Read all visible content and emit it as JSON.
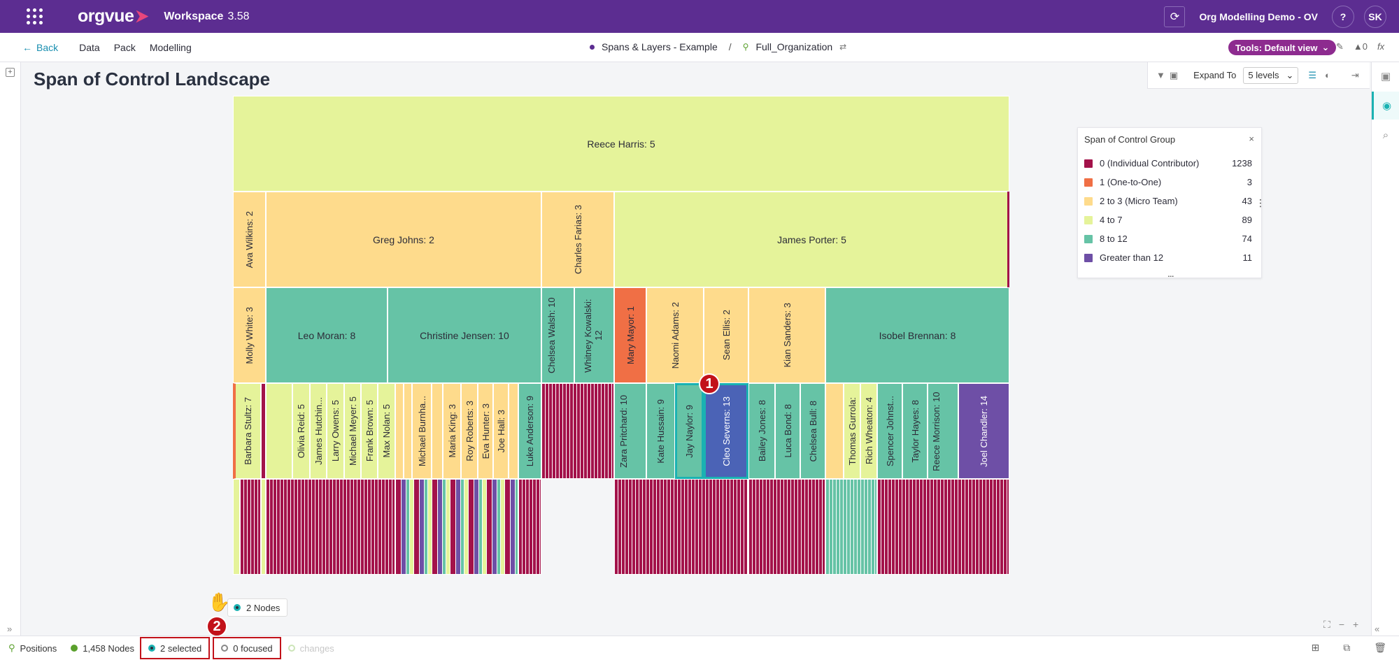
{
  "app": {
    "workspace_label": "Workspace",
    "version": "3.58",
    "logo_text": "orgvue"
  },
  "topbar": {
    "project": "Org Modelling Demo - OV",
    "help": "?",
    "user_initials": "SK"
  },
  "nav": {
    "back": "Back",
    "links": [
      "Data",
      "Pack",
      "Modelling"
    ],
    "dataset": "Spans & Layers - Example",
    "separator": "/",
    "hierarchy": "Full_Organization",
    "tools": "Tools: Default view",
    "alerts": "0"
  },
  "page": {
    "title": "Span of Control Landscape"
  },
  "expand": {
    "label": "Expand To",
    "value": "5 levels"
  },
  "chart_data": {
    "type": "treemap",
    "level1": [
      {
        "label": "Reece Harris: 5",
        "group": "4 to 7"
      }
    ],
    "level2": [
      {
        "label": "Ava Wilkins: 2",
        "group": "2 to 3 (Micro Team)"
      },
      {
        "label": "Greg Johns: 2",
        "group": "2 to 3 (Micro Team)"
      },
      {
        "label": "Charles Farias: 3",
        "group": "2 to 3 (Micro Team)"
      },
      {
        "label": "James Porter: 5",
        "group": "4 to 7"
      }
    ],
    "level3": [
      {
        "label": "Molly White: 3",
        "group": "2 to 3 (Micro Team)"
      },
      {
        "label": "Leo Moran: 8",
        "group": "8 to 12"
      },
      {
        "label": "Christine Jensen: 10",
        "group": "8 to 12"
      },
      {
        "label": "Chelsea Walsh: 10",
        "group": "8 to 12"
      },
      {
        "label": "Whitney Kowalski: 12",
        "group": "8 to 12"
      },
      {
        "label": "Mary Mayor: 1",
        "group": "1 (One-to-One)"
      },
      {
        "label": "Naomi Adams: 2",
        "group": "2 to 3 (Micro Team)"
      },
      {
        "label": "Sean Ellis: 2",
        "group": "2 to 3 (Micro Team)"
      },
      {
        "label": "Kian Sanders: 3",
        "group": "2 to 3 (Micro Team)"
      },
      {
        "label": "Isobel Brennan: 8",
        "group": "8 to 12"
      }
    ],
    "level4": [
      {
        "label": "Barbara Stultz: 7",
        "group": "4 to 7"
      },
      {
        "label": "Olivia Reid: 5",
        "group": "4 to 7"
      },
      {
        "label": "James Hutchin...",
        "group": "4 to 7"
      },
      {
        "label": "Larry Owens: 5",
        "group": "4 to 7"
      },
      {
        "label": "Michael Meyer: 5",
        "group": "4 to 7"
      },
      {
        "label": "Frank Brown: 5",
        "group": "4 to 7"
      },
      {
        "label": "Max Nolan: 5",
        "group": "4 to 7"
      },
      {
        "label": "Michael Burnha...",
        "group": "2 to 3 (Micro Team)"
      },
      {
        "label": "Maria King: 3",
        "group": "2 to 3 (Micro Team)"
      },
      {
        "label": "Roy Roberts: 3",
        "group": "2 to 3 (Micro Team)"
      },
      {
        "label": "Eva Hunter: 3",
        "group": "2 to 3 (Micro Team)"
      },
      {
        "label": "Joe Hall: 3",
        "group": "2 to 3 (Micro Team)"
      },
      {
        "label": "Luke Anderson: 9",
        "group": "8 to 12"
      },
      {
        "label": "Zara Pritchard: 10",
        "group": "8 to 12"
      },
      {
        "label": "Kate Hussain: 9",
        "group": "8 to 12"
      },
      {
        "label": "Jay Naylor: 9",
        "group": "8 to 12"
      },
      {
        "label": "Cleo Severns: 13",
        "group": "Greater than 12"
      },
      {
        "label": "Bailey Jones: 8",
        "group": "8 to 12"
      },
      {
        "label": "Luca Bond: 8",
        "group": "8 to 12"
      },
      {
        "label": "Chelsea Bull: 8",
        "group": "8 to 12"
      },
      {
        "label": "Thomas Gurrola:",
        "group": "4 to 7"
      },
      {
        "label": "Rich Wheaton: 4",
        "group": "4 to 7"
      },
      {
        "label": "Spencer Johnst...",
        "group": "8 to 12"
      },
      {
        "label": "Taylor Hayes: 8",
        "group": "8 to 12"
      },
      {
        "label": "Reece Morrison: 10",
        "group": "8 to 12"
      },
      {
        "label": "Joel Chandler: 14",
        "group": "Greater than 12"
      }
    ]
  },
  "legend": {
    "title": "Span of Control Group",
    "close": "×",
    "items": [
      {
        "label": "0 (Individual Contributor)",
        "count": "1238",
        "color": "#a3124a"
      },
      {
        "label": "1 (One-to-One)",
        "count": "3",
        "color": "#f06f45"
      },
      {
        "label": "2 to 3 (Micro Team)",
        "count": "43",
        "color": "#fedb8c"
      },
      {
        "label": "4 to 7",
        "count": "89",
        "color": "#e5f39a"
      },
      {
        "label": "8 to 12",
        "count": "74",
        "color": "#66c3a6"
      },
      {
        "label": "Greater than 12",
        "count": "11",
        "color": "#6e4fa6"
      }
    ],
    "more": "..."
  },
  "annotations": {
    "badge1": "1",
    "badge2": "2"
  },
  "tooltip": {
    "text": "2 Nodes"
  },
  "status": {
    "positions": "Positions",
    "nodes": "1,458 Nodes",
    "selected": "2 selected",
    "focused": "0 focused",
    "changes": "changes"
  }
}
